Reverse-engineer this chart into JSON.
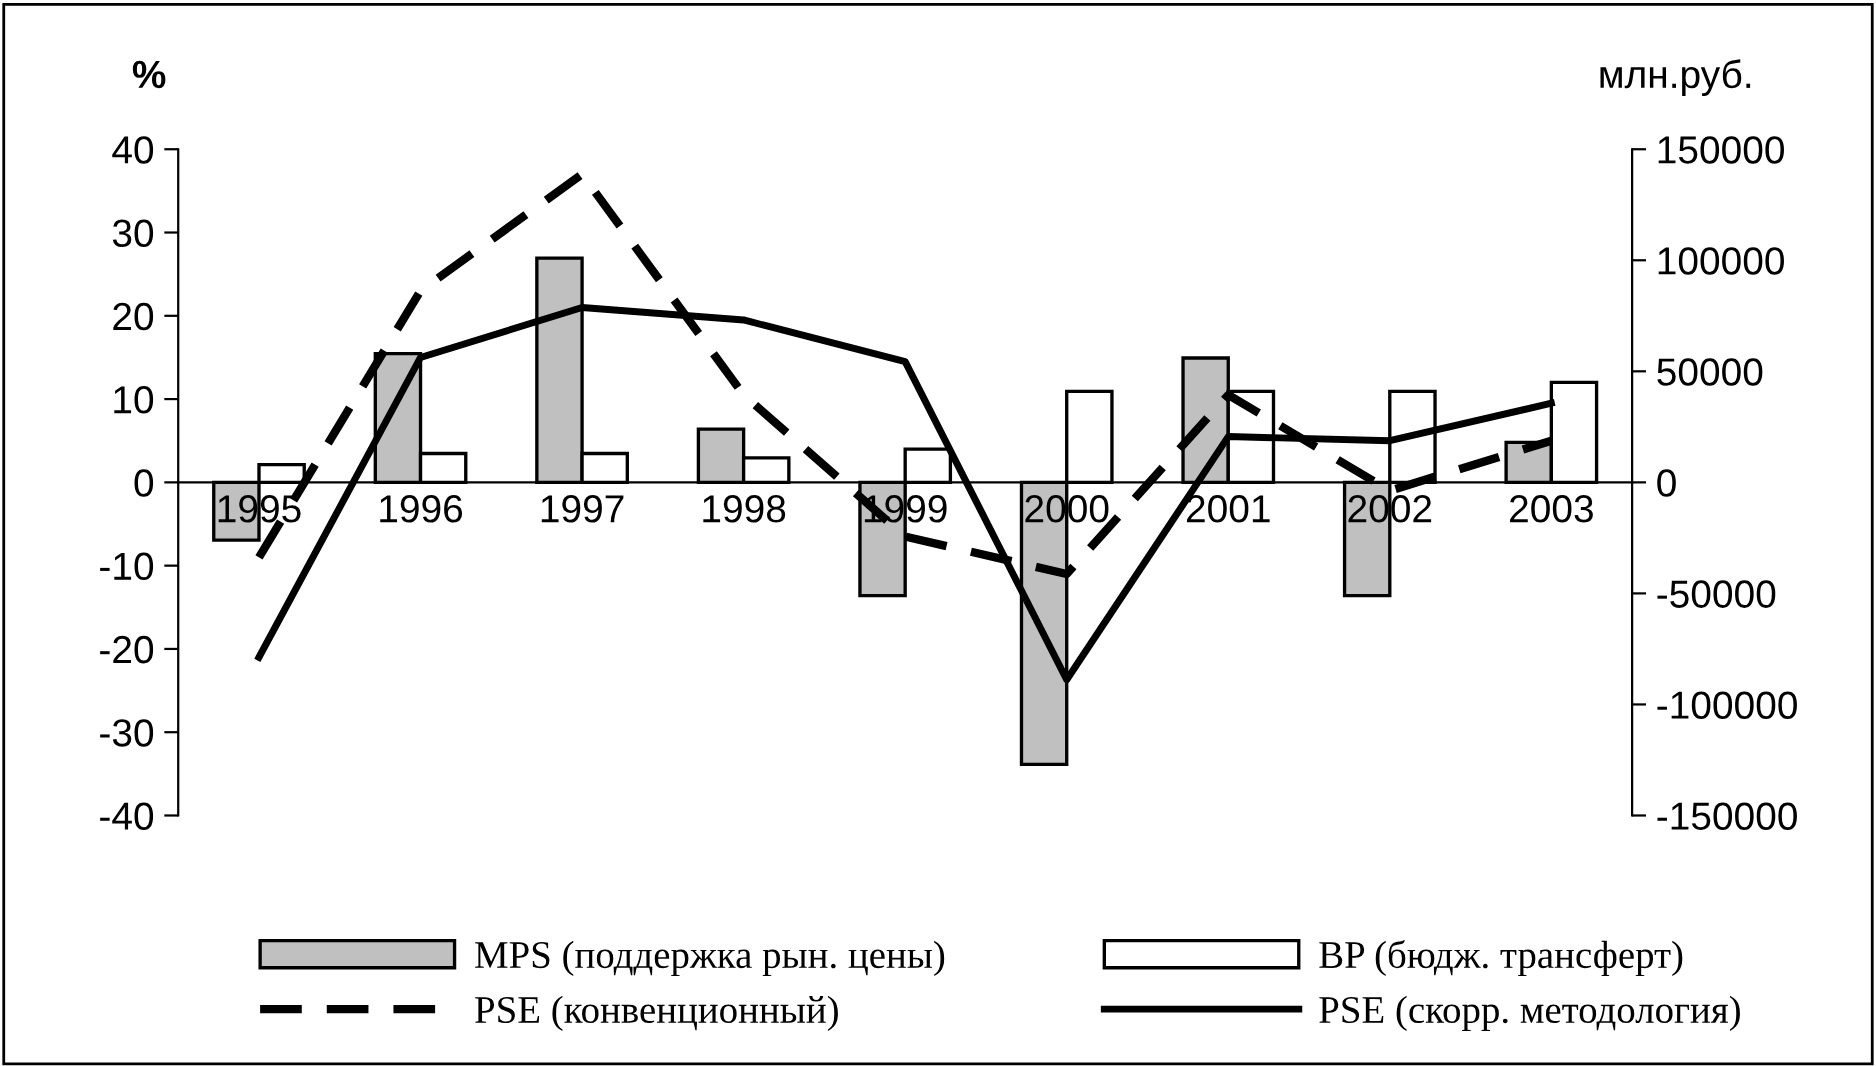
{
  "chart_data": {
    "type": "bar",
    "categories": [
      "1995",
      "1996",
      "1997",
      "1998",
      "1999",
      "2000",
      "2001",
      "2002",
      "2003"
    ],
    "ylabel": "%",
    "y2label": "млн.руб.",
    "ylim": [
      -40,
      40
    ],
    "yticks": [
      -40,
      -30,
      -20,
      -10,
      0,
      10,
      20,
      30,
      40
    ],
    "y2lim": [
      -150000,
      150000
    ],
    "y2ticks": [
      -150000,
      -100000,
      -50000,
      0,
      50000,
      100000,
      150000
    ],
    "series": [
      {
        "name": "MPS (поддержка рын. цены)",
        "axis": "y2",
        "color": "#c0c0c0",
        "values": [
          -26000,
          58000,
          101000,
          24000,
          -51000,
          -127000,
          56000,
          -51000,
          18000
        ]
      },
      {
        "name": "BP (бюдж. трансферт)",
        "axis": "y2",
        "color": "#ffffff",
        "values": [
          8000,
          13000,
          13000,
          11000,
          15000,
          41000,
          41000,
          41000,
          45000
        ]
      },
      {
        "name": "PSE (конвенционный)",
        "type": "line",
        "axis": "y",
        "color": "#000000",
        "line_style": "dashed",
        "values": [
          -9,
          23,
          37,
          10.5,
          -6.5,
          -11,
          10.5,
          -1,
          5
        ]
      },
      {
        "name": "PSE (скорр. методология)",
        "type": "line",
        "axis": "y",
        "color": "#000000",
        "line_style": "solid",
        "values": [
          -21,
          15,
          21,
          19.5,
          14.5,
          -23.7,
          5.5,
          5,
          9.5
        ]
      }
    ],
    "legend": "bottom",
    "grid": false
  }
}
